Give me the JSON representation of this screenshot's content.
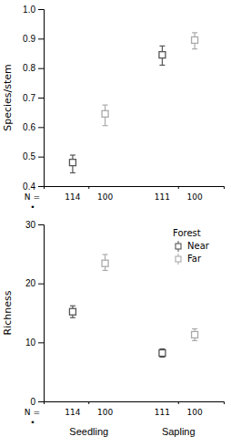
{
  "chart_data": [
    {
      "type": "errorbar",
      "ylabel": "Species/stem",
      "categories": [
        null,
        null
      ],
      "series": [
        {
          "color": "#555555",
          "values": [
            0.48,
            0.845
          ],
          "error_low": [
            0.035,
            0.035
          ],
          "error_high": [
            0.025,
            0.03
          ],
          "n": [
            114,
            111
          ]
        },
        {
          "color": "#aaaaaa",
          "values": [
            0.645,
            0.895
          ],
          "error_low": [
            0.04,
            0.03
          ],
          "error_high": [
            0.03,
            0.025
          ],
          "n": [
            100,
            100
          ]
        }
      ],
      "ylim": [
        0.4,
        1.0
      ],
      "yticks": [
        0.4,
        0.5,
        0.6,
        0.7,
        0.8,
        0.9,
        {
          "value": 1.0,
          "label": "1.0"
        }
      ],
      "n_label": "N =",
      "annotations": [
        "•"
      ],
      "marker": "square",
      "grid": false
    },
    {
      "type": "errorbar",
      "ylabel": "Richness",
      "categories": [
        "Seedling",
        "Sapling"
      ],
      "series": [
        {
          "name": "Near",
          "color": "#555555",
          "values": [
            15.2,
            8.2
          ],
          "error_low": [
            1.0,
            0.7
          ],
          "error_high": [
            1.0,
            0.7
          ],
          "n": [
            114,
            111
          ]
        },
        {
          "name": "Far",
          "color": "#aaaaaa",
          "values": [
            23.4,
            11.3
          ],
          "error_low": [
            1.2,
            1.0
          ],
          "error_high": [
            1.5,
            1.0
          ],
          "n": [
            100,
            100
          ]
        }
      ],
      "ylim": [
        0,
        30
      ],
      "yticks": [
        0,
        10,
        20,
        30
      ],
      "n_label": "N =",
      "annotations": [
        "•"
      ],
      "marker": "square",
      "grid": false,
      "legend": "top-right",
      "legend_title": "Forest"
    }
  ]
}
